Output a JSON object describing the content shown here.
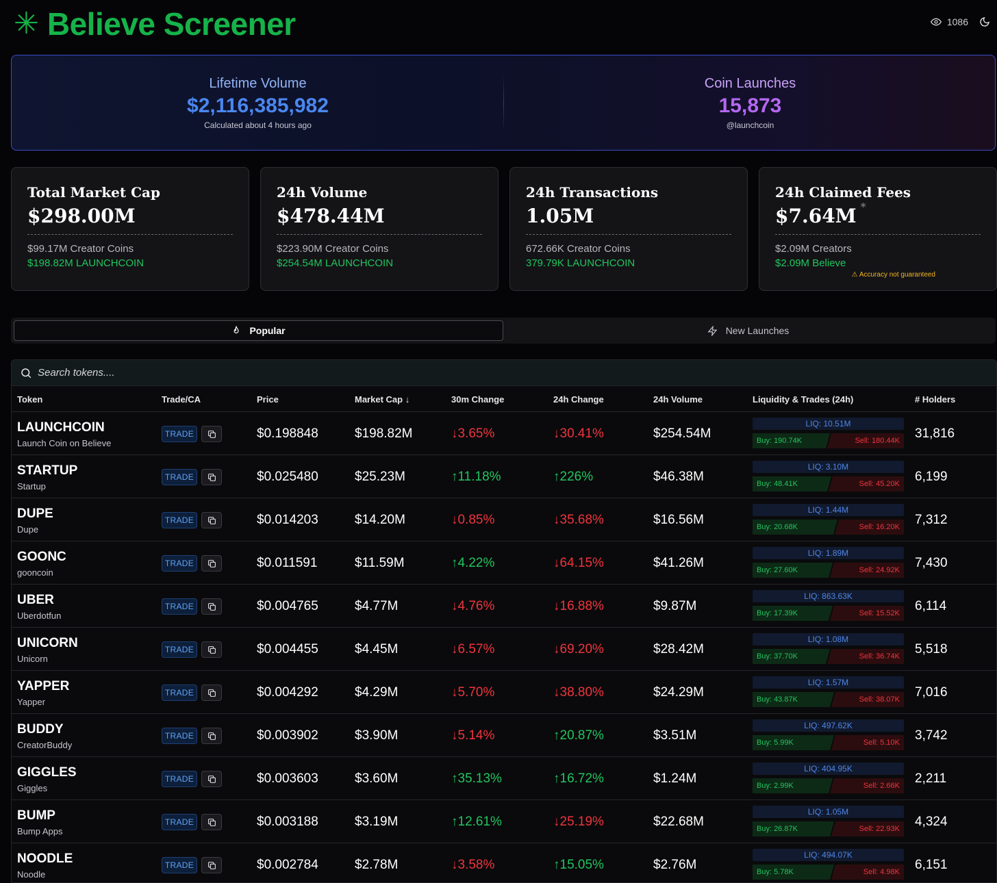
{
  "header": {
    "logo_icon": "✳",
    "title": "Believe Screener",
    "viewers": "1086"
  },
  "hero": {
    "left": {
      "label": "Lifetime Volume",
      "value": "$2,116,385,982",
      "sub": "Calculated about 4 hours ago"
    },
    "right": {
      "label": "Coin Launches",
      "value": "15,873",
      "sub": "@launchcoin"
    }
  },
  "stats": [
    {
      "title": "Total Market Cap",
      "value": "$298.00M",
      "line1": "$99.17M Creator Coins",
      "line2": "$198.82M LAUNCHCOIN"
    },
    {
      "title": "24h Volume",
      "value": "$478.44M",
      "line1": "$223.90M Creator Coins",
      "line2": "$254.54M LAUNCHCOIN"
    },
    {
      "title": "24h Transactions",
      "value": "1.05M",
      "line1": "672.66K Creator Coins",
      "line2": "379.79K LAUNCHCOIN"
    },
    {
      "title": "24h Claimed Fees",
      "value": "$7.64M",
      "asterisk": "*",
      "line1": "$2.09M Creators",
      "line2": "$2.09M Believe",
      "warning": "⚠ Accuracy not guaranteed"
    }
  ],
  "tabs": {
    "popular": "Popular",
    "new_launches": "New Launches"
  },
  "search": {
    "placeholder": "Search tokens...."
  },
  "table": {
    "headers": {
      "token": "Token",
      "trade": "Trade/CA",
      "price": "Price",
      "mcap": "Market Cap",
      "sort_arrow": "↓",
      "change30": "30m Change",
      "change24": "24h Change",
      "volume": "24h Volume",
      "liq": "Liquidity & Trades (24h)",
      "holders": "# Holders"
    },
    "trade_label": "TRADE",
    "rows": [
      {
        "symbol": "LAUNCHCOIN",
        "name": "Launch Coin on Believe",
        "price": "$0.198848",
        "mcap": "$198.82M",
        "c30": "↓3.65%",
        "c30dir": "down",
        "c24": "↓30.41%",
        "c24dir": "down",
        "vol": "$254.54M",
        "liq": "LIQ: 10.51M",
        "buy": "Buy: 190.74K",
        "sell": "Sell: 180.44K",
        "buy_ratio": 0.51,
        "holders": "31,816"
      },
      {
        "symbol": "STARTUP",
        "name": "Startup",
        "price": "$0.025480",
        "mcap": "$25.23M",
        "c30": "↑11.18%",
        "c30dir": "up",
        "c24": "↑226%",
        "c24dir": "up",
        "vol": "$46.38M",
        "liq": "LIQ: 3.10M",
        "buy": "Buy: 48.41K",
        "sell": "Sell: 45.20K",
        "buy_ratio": 0.52,
        "holders": "6,199"
      },
      {
        "symbol": "DUPE",
        "name": "Dupe",
        "price": "$0.014203",
        "mcap": "$14.20M",
        "c30": "↓0.85%",
        "c30dir": "down",
        "c24": "↓35.68%",
        "c24dir": "down",
        "vol": "$16.56M",
        "liq": "LIQ: 1.44M",
        "buy": "Buy: 20.68K",
        "sell": "Sell: 16.20K",
        "buy_ratio": 0.56,
        "holders": "7,312"
      },
      {
        "symbol": "GOONC",
        "name": "gooncoin",
        "price": "$0.011591",
        "mcap": "$11.59M",
        "c30": "↑4.22%",
        "c30dir": "up",
        "c24": "↓64.15%",
        "c24dir": "down",
        "vol": "$41.26M",
        "liq": "LIQ: 1.89M",
        "buy": "Buy: 27.60K",
        "sell": "Sell: 24.92K",
        "buy_ratio": 0.53,
        "holders": "7,430"
      },
      {
        "symbol": "UBER",
        "name": "Uberdotfun",
        "price": "$0.004765",
        "mcap": "$4.77M",
        "c30": "↓4.76%",
        "c30dir": "down",
        "c24": "↓16.88%",
        "c24dir": "down",
        "vol": "$9.87M",
        "liq": "LIQ: 863.63K",
        "buy": "Buy: 17.39K",
        "sell": "Sell: 15.52K",
        "buy_ratio": 0.53,
        "holders": "6,114"
      },
      {
        "symbol": "UNICORN",
        "name": "Unicorn",
        "price": "$0.004455",
        "mcap": "$4.45M",
        "c30": "↓6.57%",
        "c30dir": "down",
        "c24": "↓69.20%",
        "c24dir": "down",
        "vol": "$28.42M",
        "liq": "LIQ: 1.08M",
        "buy": "Buy: 37.70K",
        "sell": "Sell: 36.74K",
        "buy_ratio": 0.51,
        "holders": "5,518"
      },
      {
        "symbol": "YAPPER",
        "name": "Yapper",
        "price": "$0.004292",
        "mcap": "$4.29M",
        "c30": "↓5.70%",
        "c30dir": "down",
        "c24": "↓38.80%",
        "c24dir": "down",
        "vol": "$24.29M",
        "liq": "LIQ: 1.57M",
        "buy": "Buy: 43.87K",
        "sell": "Sell: 38.07K",
        "buy_ratio": 0.54,
        "holders": "7,016"
      },
      {
        "symbol": "BUDDY",
        "name": "CreatorBuddy",
        "price": "$0.003902",
        "mcap": "$3.90M",
        "c30": "↓5.14%",
        "c30dir": "down",
        "c24": "↑20.87%",
        "c24dir": "up",
        "vol": "$3.51M",
        "liq": "LIQ: 497.62K",
        "buy": "Buy: 5.99K",
        "sell": "Sell: 5.10K",
        "buy_ratio": 0.54,
        "holders": "3,742"
      },
      {
        "symbol": "GIGGLES",
        "name": "Giggles",
        "price": "$0.003603",
        "mcap": "$3.60M",
        "c30": "↑35.13%",
        "c30dir": "up",
        "c24": "↑16.72%",
        "c24dir": "up",
        "vol": "$1.24M",
        "liq": "LIQ: 404.95K",
        "buy": "Buy: 2.99K",
        "sell": "Sell: 2.66K",
        "buy_ratio": 0.53,
        "holders": "2,211"
      },
      {
        "symbol": "BUMP",
        "name": "Bump Apps",
        "price": "$0.003188",
        "mcap": "$3.19M",
        "c30": "↑12.61%",
        "c30dir": "up",
        "c24": "↓25.19%",
        "c24dir": "down",
        "vol": "$22.68M",
        "liq": "LIQ: 1.05M",
        "buy": "Buy: 26.87K",
        "sell": "Sell: 22.93K",
        "buy_ratio": 0.54,
        "holders": "4,324"
      },
      {
        "symbol": "NOODLE",
        "name": "Noodle",
        "price": "$0.002784",
        "mcap": "$2.78M",
        "c30": "↓3.58%",
        "c30dir": "down",
        "c24": "↑15.05%",
        "c24dir": "up",
        "vol": "$2.76M",
        "liq": "LIQ: 494.07K",
        "buy": "Buy: 5.78K",
        "sell": "Sell: 4.98K",
        "buy_ratio": 0.54,
        "holders": "6,151"
      }
    ]
  },
  "colors": {
    "brand_green": "#16b34a",
    "up": "#22c55e",
    "down": "#f0343d",
    "accent_blue": "#4a87f0",
    "accent_purple": "#b468f0",
    "warning": "#f5b623"
  }
}
